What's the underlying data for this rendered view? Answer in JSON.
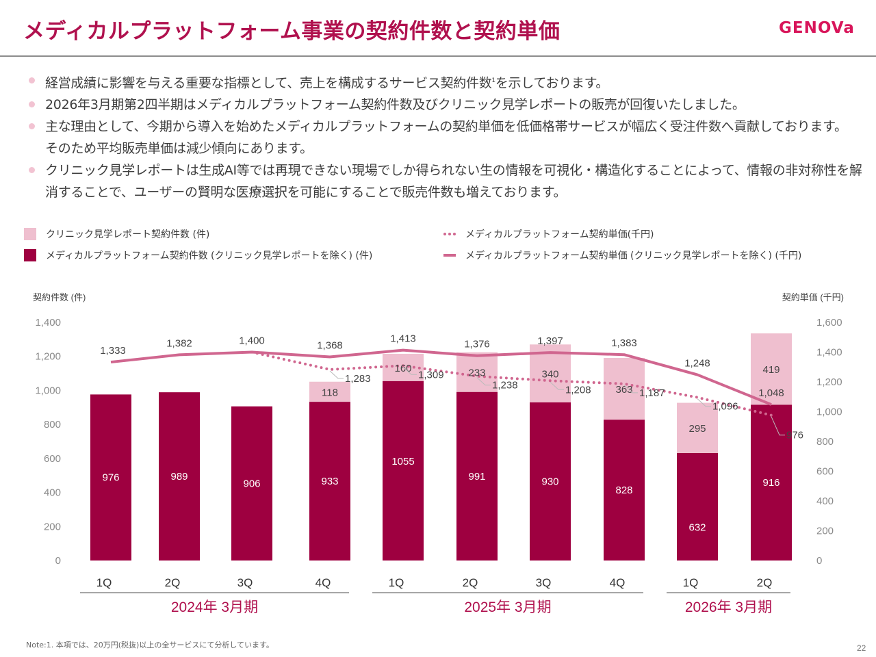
{
  "header": {
    "title": "メディカルプラットフォーム事業の契約件数と契約単価",
    "logo": "GENOVa"
  },
  "bullets": [
    {
      "text": "経営成績に影響を与える重要な指標として、売上を構成するサービス契約件数",
      "sup": "1",
      "after": "を示しております。"
    },
    {
      "text": "2026年3月期第2四半期はメディカルプラットフォーム契約件数及びクリニック見学レポートの販売が回復いたしました。",
      "sup": "",
      "after": ""
    },
    {
      "text": "主な理由として、今期から導入を始めたメディカルプラットフォームの契約単価を低価格帯サービスが幅広く受注件数へ貢献しております。そのため平均販売単価は減少傾向にあります。",
      "sup": "",
      "after": ""
    },
    {
      "text": "クリニック見学レポートは生成AI等では再現できない現場でしか得られない生の情報を可視化・構造化することによって、情報の非対称性を解消することで、ユーザーの賢明な医療選択を可能にすることで販売件数も増えております。",
      "sup": "",
      "after": ""
    }
  ],
  "legend": {
    "clinic_count": "クリニック見学レポート契約件数 (件)",
    "mp_count": "メディカルプラットフォーム契約件数 (クリニック見学レポートを除く) (件)",
    "mp_price_all": "メディカルプラットフォーム契約単価(千円)",
    "mp_price_excl": "メディカルプラットフォーム契約単価 (クリニック見学レポートを除く) (千円)"
  },
  "colors": {
    "brand": "#b0114e",
    "bar_dark": "#9e0040",
    "bar_light": "#efbfcf",
    "line": "#d0668f"
  },
  "chart_data": {
    "type": "bar",
    "stacked": true,
    "title": "",
    "ylabel_left": "契約件数 (件)",
    "ylabel_right": "契約単価 (千円)",
    "ylim_left": [
      0,
      1400
    ],
    "ylim_right": [
      0,
      1600
    ],
    "yticks_left": [
      "0",
      "200",
      "400",
      "600",
      "800",
      "1,000",
      "1,200",
      "1,400"
    ],
    "yticks_right": [
      "0",
      "200",
      "400",
      "600",
      "800",
      "1,000",
      "1,200",
      "1,400",
      "1,600"
    ],
    "categories": [
      "1Q",
      "2Q",
      "3Q",
      "4Q",
      "1Q",
      "2Q",
      "3Q",
      "4Q",
      "1Q",
      "2Q"
    ],
    "groups": [
      {
        "label": "2024年 3月期",
        "span": [
          0,
          3
        ]
      },
      {
        "label": "2025年 3月期",
        "span": [
          4,
          7
        ]
      },
      {
        "label": "2026年 3月期",
        "span": [
          8,
          9
        ]
      }
    ],
    "series": [
      {
        "name": "メディカルプラットフォーム契約件数 (クリニック見学レポートを除く) (件)",
        "kind": "bar",
        "axis": "left",
        "values": [
          976,
          989,
          906,
          933,
          1055,
          991,
          930,
          828,
          632,
          916
        ]
      },
      {
        "name": "クリニック見学レポート契約件数 (件)",
        "kind": "bar",
        "axis": "left",
        "values": [
          null,
          null,
          null,
          118,
          160,
          233,
          340,
          363,
          295,
          419
        ]
      },
      {
        "name": "メディカルプラットフォーム契約単価 (クリニック見学レポートを除く) (千円)",
        "kind": "line-solid",
        "axis": "right",
        "values": [
          1333,
          1382,
          1400,
          1368,
          1413,
          1376,
          1397,
          1383,
          1248,
          1048
        ]
      },
      {
        "name": "メディカルプラットフォーム契約単価(千円)",
        "kind": "line-dotted",
        "axis": "right",
        "values": [
          null,
          null,
          1400,
          1283,
          1309,
          1238,
          1208,
          1187,
          1096,
          976
        ]
      }
    ]
  },
  "footer": {
    "note": "Note:1. 本項では、20万円(税抜)以上の全サービスにて分析しています。",
    "page": "22"
  }
}
